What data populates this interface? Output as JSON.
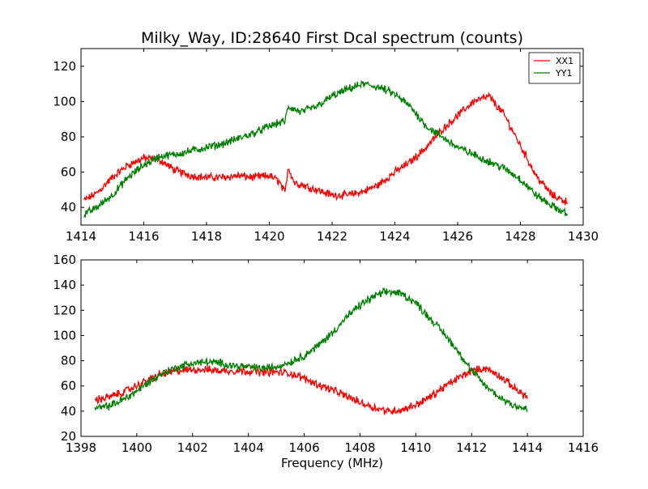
{
  "figure": {
    "title": "Milky_Way, ID:28640 First Dcal spectrum (counts)",
    "xlabel": "Frequency (MHz)"
  },
  "colors": {
    "XX1": "#ff0000",
    "YY1": "#008000"
  },
  "chart_data": [
    {
      "type": "line",
      "title": "Milky_Way, ID:28640 First Dcal spectrum (counts)",
      "xlabel": "",
      "ylabel": "",
      "xlim": [
        1414,
        1430
      ],
      "ylim": [
        30,
        130
      ],
      "xticks": [
        1414,
        1416,
        1418,
        1420,
        1422,
        1424,
        1426,
        1428,
        1430
      ],
      "yticks": [
        40,
        60,
        80,
        100,
        120
      ],
      "grid": false,
      "legend": "top-right",
      "series": [
        {
          "name": "XX1",
          "color": "#ff0000",
          "x": [
            1414.1,
            1414.5,
            1415.0,
            1415.5,
            1416.0,
            1416.5,
            1417.0,
            1417.5,
            1418.0,
            1418.5,
            1419.0,
            1419.5,
            1420.0,
            1420.3,
            1420.5,
            1420.6,
            1420.8,
            1421.0,
            1421.5,
            1422.0,
            1422.5,
            1423.0,
            1423.5,
            1424.0,
            1424.5,
            1425.0,
            1425.5,
            1426.0,
            1426.5,
            1427.0,
            1427.5,
            1428.0,
            1428.5,
            1429.0,
            1429.5
          ],
          "y": [
            44,
            48,
            57,
            64,
            68,
            67,
            61,
            58,
            57,
            57,
            58,
            57,
            58,
            55,
            48,
            63,
            54,
            53,
            50,
            47,
            47,
            49,
            53,
            60,
            66,
            74,
            84,
            92,
            100,
            103,
            92,
            75,
            58,
            47,
            43
          ]
        },
        {
          "name": "YY1",
          "color": "#008000",
          "x": [
            1414.1,
            1414.5,
            1415.0,
            1415.5,
            1416.0,
            1416.5,
            1417.0,
            1417.5,
            1418.0,
            1418.5,
            1419.0,
            1419.5,
            1420.0,
            1420.5,
            1420.6,
            1421.0,
            1421.5,
            1422.0,
            1422.5,
            1423.0,
            1423.5,
            1424.0,
            1424.5,
            1425.0,
            1425.5,
            1426.0,
            1426.5,
            1427.0,
            1427.5,
            1428.0,
            1428.5,
            1429.0,
            1429.5
          ],
          "y": [
            36,
            40,
            47,
            57,
            64,
            69,
            70,
            72,
            74,
            76,
            79,
            82,
            86,
            89,
            97,
            94,
            97,
            103,
            107,
            110,
            108,
            104,
            97,
            86,
            80,
            74,
            70,
            66,
            62,
            56,
            47,
            41,
            36
          ]
        }
      ]
    },
    {
      "type": "line",
      "title": "",
      "xlabel": "Frequency (MHz)",
      "ylabel": "",
      "xlim": [
        1398,
        1416
      ],
      "ylim": [
        20,
        160
      ],
      "xticks": [
        1398,
        1400,
        1402,
        1404,
        1406,
        1408,
        1410,
        1412,
        1414,
        1416
      ],
      "yticks": [
        20,
        40,
        60,
        80,
        100,
        120,
        140,
        160
      ],
      "grid": false,
      "series": [
        {
          "color": "#ff0000",
          "x": [
            1398.5,
            1399.0,
            1399.5,
            1400.0,
            1400.5,
            1401.0,
            1401.5,
            1402.0,
            1402.5,
            1403.0,
            1403.5,
            1404.0,
            1404.5,
            1405.0,
            1405.5,
            1406.0,
            1406.5,
            1407.0,
            1407.5,
            1408.0,
            1408.5,
            1409.0,
            1409.5,
            1410.0,
            1410.5,
            1411.0,
            1411.5,
            1412.0,
            1412.5,
            1413.0,
            1413.5,
            1414.0
          ],
          "y": [
            49,
            51,
            55,
            60,
            66,
            70,
            72,
            73,
            73,
            72,
            72,
            72,
            71,
            71,
            70,
            66,
            61,
            57,
            52,
            47,
            43,
            40,
            41,
            45,
            51,
            59,
            66,
            72,
            74,
            68,
            59,
            51
          ]
        },
        {
          "color": "#008000",
          "x": [
            1398.5,
            1399.0,
            1399.5,
            1400.0,
            1400.5,
            1401.0,
            1401.5,
            1402.0,
            1402.5,
            1403.0,
            1403.5,
            1404.0,
            1404.5,
            1405.0,
            1405.5,
            1406.0,
            1406.5,
            1407.0,
            1407.5,
            1408.0,
            1408.5,
            1409.0,
            1409.5,
            1410.0,
            1410.5,
            1411.0,
            1411.5,
            1412.0,
            1412.5,
            1413.0,
            1413.5,
            1414.0
          ],
          "y": [
            42,
            44,
            49,
            56,
            64,
            71,
            75,
            78,
            79,
            78,
            76,
            75,
            74,
            75,
            79,
            84,
            92,
            102,
            114,
            124,
            131,
            135,
            133,
            126,
            114,
            102,
            88,
            72,
            60,
            51,
            45,
            41
          ]
        }
      ]
    }
  ]
}
